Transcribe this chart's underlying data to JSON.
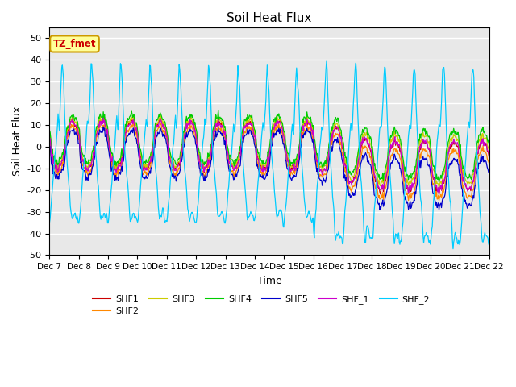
{
  "title": "Soil Heat Flux",
  "ylabel": "Soil Heat Flux",
  "xlabel": "Time",
  "ylim": [
    -50,
    55
  ],
  "bg_color": "#e8e8e8",
  "series_colors": {
    "SHF1": "#cc0000",
    "SHF2": "#ff8800",
    "SHF3": "#cccc00",
    "SHF4": "#00cc00",
    "SHF5": "#0000cc",
    "SHF_1": "#cc00cc",
    "SHF_2": "#00ccff"
  },
  "xtick_labels": [
    "Dec 7",
    "Dec 8",
    "Dec 9",
    "Dec 10",
    "Dec 11",
    "Dec 12",
    "Dec 13",
    "Dec 14",
    "Dec 15",
    "Dec 16",
    "Dec 17",
    "Dec 18",
    "Dec 19",
    "Dec 20",
    "Dec 21",
    "Dec 22"
  ],
  "ytick_labels": [
    "-50",
    "-40",
    "-30",
    "-20",
    "-10",
    "0",
    "10",
    "20",
    "30",
    "40",
    "50"
  ],
  "ytick_values": [
    -50,
    -40,
    -30,
    -20,
    -10,
    0,
    10,
    20,
    30,
    40,
    50
  ],
  "annotation_text": "TZ_fmet",
  "annotation_bg": "#ffff99",
  "annotation_border": "#cc9900",
  "annotation_textcolor": "#cc0000"
}
